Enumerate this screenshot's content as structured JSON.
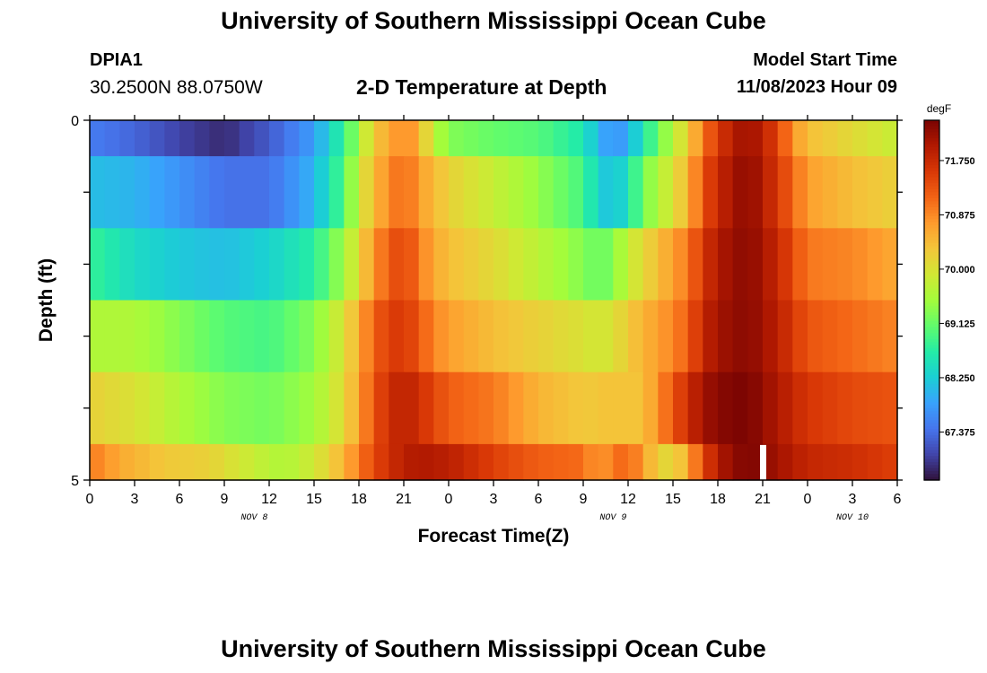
{
  "header": {
    "title": "University of Southern Mississippi Ocean Cube",
    "station_id": "DPIA1",
    "coordinates": "30.2500N  88.0750W",
    "plot_title": "2-D Temperature at Depth",
    "model_start_label": "Model Start Time",
    "model_start_value": "11/08/2023 Hour 09"
  },
  "footer": {
    "title": "University of Southern Mississippi Ocean Cube"
  },
  "chart_data": {
    "type": "heatmap",
    "title": "2-D Temperature at Depth",
    "xlabel": "Forecast Time(Z)",
    "ylabel": "Depth (ft)",
    "x_tick_labels": [
      "0",
      "3",
      "6",
      "9",
      "12",
      "15",
      "18",
      "21",
      "0",
      "3",
      "6",
      "9",
      "12",
      "15",
      "18",
      "21",
      "0",
      "3",
      "6"
    ],
    "x_range_hours": [
      0,
      54
    ],
    "date_labels": [
      {
        "label": "NOV 8",
        "hour": 11
      },
      {
        "label": "NOV 9",
        "hour": 35
      },
      {
        "label": "NOV 10",
        "hour": 51
      }
    ],
    "y_tick_labels": [
      "0",
      "5"
    ],
    "y_range": [
      0,
      5
    ],
    "colorbar": {
      "unit": "degF",
      "tick_labels": [
        "71.750",
        "70.875",
        "70.000",
        "69.125",
        "68.250",
        "67.375"
      ],
      "tick_values": [
        71.75,
        70.875,
        70.0,
        69.125,
        68.25,
        67.375
      ],
      "range": [
        66.6,
        72.4
      ],
      "colors": [
        "#30123b",
        "#4145ab",
        "#4675ed",
        "#39a2fc",
        "#1bcfd4",
        "#24eca6",
        "#61fc6c",
        "#a4fc3b",
        "#d1e834",
        "#f3c63a",
        "#fe9b2d",
        "#f36315",
        "#d93806",
        "#b11901",
        "#7a0402"
      ]
    },
    "layers": [
      {
        "depth_top": 0,
        "depth_bottom": 0.5,
        "knots": [
          [
            0,
            67.5
          ],
          [
            3,
            67.3
          ],
          [
            6,
            67.0
          ],
          [
            9,
            66.8
          ],
          [
            12,
            67.2
          ],
          [
            15,
            67.8
          ],
          [
            17,
            68.8
          ],
          [
            18,
            69.5
          ],
          [
            19,
            70.3
          ],
          [
            20,
            70.6
          ],
          [
            21,
            70.9
          ],
          [
            22,
            70.6
          ],
          [
            23,
            69.7
          ],
          [
            24,
            69.3
          ],
          [
            27,
            69.1
          ],
          [
            30,
            69.0
          ],
          [
            33,
            68.6
          ],
          [
            34,
            68.0
          ],
          [
            35,
            67.7
          ],
          [
            36,
            67.9
          ],
          [
            37,
            68.6
          ],
          [
            38,
            69.1
          ],
          [
            39,
            69.7
          ],
          [
            40,
            70.2
          ],
          [
            41,
            71.0
          ],
          [
            42,
            71.6
          ],
          [
            44,
            72.2
          ],
          [
            46,
            71.5
          ],
          [
            47,
            70.8
          ],
          [
            48,
            70.4
          ],
          [
            51,
            70.1
          ],
          [
            54,
            69.8
          ]
        ]
      },
      {
        "depth_top": 0.5,
        "depth_bottom": 1.5,
        "knots": [
          [
            0,
            68.1
          ],
          [
            3,
            68.0
          ],
          [
            6,
            67.7
          ],
          [
            9,
            67.4
          ],
          [
            12,
            67.4
          ],
          [
            15,
            68.0
          ],
          [
            17,
            69.0
          ],
          [
            18,
            69.8
          ],
          [
            19,
            70.5
          ],
          [
            20,
            70.8
          ],
          [
            21,
            71.2
          ],
          [
            22,
            70.7
          ],
          [
            24,
            70.2
          ],
          [
            27,
            69.8
          ],
          [
            30,
            69.4
          ],
          [
            33,
            68.9
          ],
          [
            34,
            68.3
          ],
          [
            35,
            68.1
          ],
          [
            36,
            68.5
          ],
          [
            37,
            69.2
          ],
          [
            38,
            69.6
          ],
          [
            39,
            70.0
          ],
          [
            40,
            70.5
          ],
          [
            41,
            71.3
          ],
          [
            42,
            71.8
          ],
          [
            44,
            72.3
          ],
          [
            46,
            71.6
          ],
          [
            48,
            70.7
          ],
          [
            51,
            70.4
          ],
          [
            54,
            70.2
          ]
        ]
      },
      {
        "depth_top": 1.5,
        "depth_bottom": 2.5,
        "knots": [
          [
            0,
            68.8
          ],
          [
            3,
            68.4
          ],
          [
            6,
            68.2
          ],
          [
            9,
            68.1
          ],
          [
            12,
            68.3
          ],
          [
            15,
            68.7
          ],
          [
            17,
            69.5
          ],
          [
            18,
            70.1
          ],
          [
            19,
            70.8
          ],
          [
            20,
            71.2
          ],
          [
            21,
            71.5
          ],
          [
            22,
            71.0
          ],
          [
            23,
            70.6
          ],
          [
            24,
            70.4
          ],
          [
            27,
            70.1
          ],
          [
            30,
            69.7
          ],
          [
            33,
            69.3
          ],
          [
            34,
            69.1
          ],
          [
            35,
            69.3
          ],
          [
            36,
            69.8
          ],
          [
            37,
            70.1
          ],
          [
            38,
            70.4
          ],
          [
            39,
            70.7
          ],
          [
            40,
            71.0
          ],
          [
            41,
            71.6
          ],
          [
            42,
            72.0
          ],
          [
            44,
            72.3
          ],
          [
            46,
            71.8
          ],
          [
            48,
            71.0
          ],
          [
            51,
            70.9
          ],
          [
            54,
            70.6
          ]
        ]
      },
      {
        "depth_top": 2.5,
        "depth_bottom": 3.5,
        "knots": [
          [
            0,
            69.6
          ],
          [
            3,
            69.6
          ],
          [
            6,
            69.3
          ],
          [
            9,
            69.0
          ],
          [
            12,
            68.9
          ],
          [
            15,
            69.3
          ],
          [
            17,
            70.0
          ],
          [
            18,
            70.6
          ],
          [
            19,
            71.2
          ],
          [
            20,
            71.5
          ],
          [
            21,
            71.6
          ],
          [
            22,
            71.3
          ],
          [
            23,
            70.9
          ],
          [
            24,
            70.7
          ],
          [
            27,
            70.4
          ],
          [
            30,
            70.2
          ],
          [
            33,
            70.0
          ],
          [
            34,
            69.9
          ],
          [
            35,
            70.0
          ],
          [
            36,
            70.3
          ],
          [
            37,
            70.5
          ],
          [
            38,
            70.7
          ],
          [
            39,
            70.9
          ],
          [
            40,
            71.2
          ],
          [
            41,
            71.8
          ],
          [
            42,
            72.1
          ],
          [
            44,
            72.3
          ],
          [
            46,
            71.9
          ],
          [
            48,
            71.3
          ],
          [
            51,
            71.1
          ],
          [
            54,
            70.9
          ]
        ]
      },
      {
        "depth_top": 3.5,
        "depth_bottom": 4.5,
        "knots": [
          [
            0,
            70.2
          ],
          [
            3,
            70.0
          ],
          [
            6,
            69.6
          ],
          [
            9,
            69.3
          ],
          [
            12,
            69.2
          ],
          [
            15,
            69.5
          ],
          [
            17,
            70.1
          ],
          [
            18,
            70.7
          ],
          [
            19,
            71.3
          ],
          [
            20,
            71.7
          ],
          [
            21,
            71.9
          ],
          [
            22,
            71.7
          ],
          [
            24,
            71.2
          ],
          [
            27,
            71.0
          ],
          [
            30,
            70.5
          ],
          [
            33,
            70.3
          ],
          [
            34,
            70.3
          ],
          [
            35,
            70.4
          ],
          [
            36,
            70.3
          ],
          [
            37,
            70.4
          ],
          [
            38,
            70.8
          ],
          [
            39,
            71.3
          ],
          [
            40,
            71.7
          ],
          [
            41,
            72.1
          ],
          [
            42,
            72.3
          ],
          [
            44,
            72.4
          ],
          [
            46,
            72.0
          ],
          [
            48,
            71.6
          ],
          [
            51,
            71.4
          ],
          [
            54,
            71.3
          ]
        ]
      },
      {
        "depth_top": 4.5,
        "depth_bottom": 5,
        "knots": [
          [
            0,
            71.0
          ],
          [
            2,
            70.6
          ],
          [
            5,
            70.3
          ],
          [
            8,
            70.2
          ],
          [
            11,
            69.8
          ],
          [
            13,
            69.6
          ],
          [
            15,
            69.9
          ],
          [
            17,
            70.5
          ],
          [
            18,
            71.0
          ],
          [
            19,
            71.4
          ],
          [
            20,
            71.7
          ],
          [
            21,
            71.9
          ],
          [
            22,
            72.0
          ],
          [
            24,
            71.9
          ],
          [
            27,
            71.5
          ],
          [
            30,
            71.2
          ],
          [
            33,
            71.1
          ],
          [
            34,
            70.7
          ],
          [
            35,
            71.0
          ],
          [
            36,
            71.2
          ],
          [
            37,
            70.7
          ],
          [
            38,
            70.2
          ],
          [
            39,
            70.1
          ],
          [
            40,
            70.6
          ],
          [
            41,
            71.4
          ],
          [
            42,
            72.0
          ],
          [
            44,
            72.4
          ],
          [
            46,
            72.1
          ],
          [
            48,
            71.8
          ],
          [
            51,
            71.7
          ],
          [
            54,
            71.5
          ]
        ]
      }
    ]
  }
}
